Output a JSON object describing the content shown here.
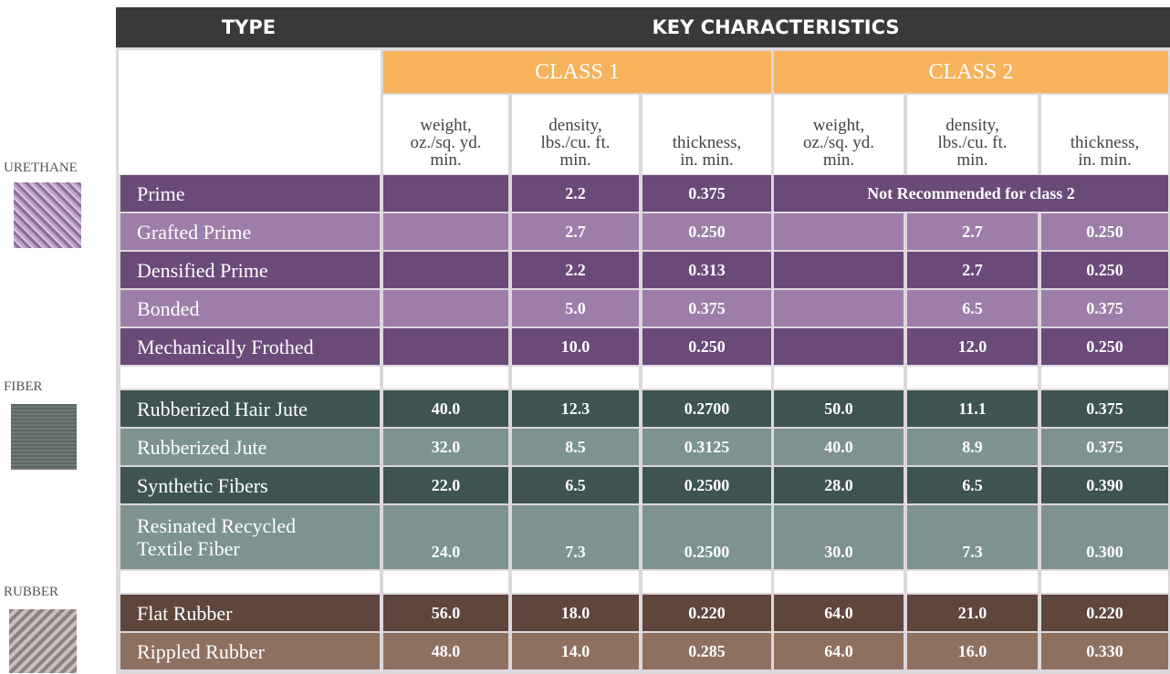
{
  "header": {
    "type": "TYPE",
    "key": "KEY CHARACTERISTICS"
  },
  "classes": [
    "CLASS 1",
    "CLASS 2"
  ],
  "columns": [
    "weight,\noz./sq. yd.\nmin.",
    "density,\nlbs./cu. ft.\nmin.",
    "thickness,\nin. min.",
    "weight,\noz./sq. yd.\nmin.",
    "density,\nlbs./cu. ft.\nmin.",
    "thickness,\nin. min."
  ],
  "groups": [
    {
      "label": "URETHANE",
      "rows": [
        {
          "name": "Prime",
          "values": [
            null,
            "2.2",
            "0.375"
          ],
          "note": "Not Recommended for class 2"
        },
        {
          "name": "Grafted Prime",
          "values": [
            null,
            "2.7",
            "0.250",
            null,
            "2.7",
            "0.250"
          ]
        },
        {
          "name": "Densified Prime",
          "values": [
            null,
            "2.2",
            "0.313",
            null,
            "2.7",
            "0.250"
          ]
        },
        {
          "name": "Bonded",
          "values": [
            null,
            "5.0",
            "0.375",
            null,
            "6.5",
            "0.375"
          ]
        },
        {
          "name": "Mechanically Frothed",
          "values": [
            null,
            "10.0",
            "0.250",
            null,
            "12.0",
            "0.250"
          ]
        }
      ]
    },
    {
      "label": "FIBER",
      "rows": [
        {
          "name": "Rubberized Hair Jute",
          "values": [
            "40.0",
            "12.3",
            "0.2700",
            "50.0",
            "11.1",
            "0.375"
          ]
        },
        {
          "name": "Rubberized Jute",
          "values": [
            "32.0",
            "8.5",
            "0.3125",
            "40.0",
            "8.9",
            "0.375"
          ]
        },
        {
          "name": "Synthetic Fibers",
          "values": [
            "22.0",
            "6.5",
            "0.2500",
            "28.0",
            "6.5",
            "0.390"
          ]
        },
        {
          "name": "Resinated Recycled\nTextile Fiber",
          "values": [
            "24.0",
            "7.3",
            "0.2500",
            "30.0",
            "7.3",
            "0.300"
          ]
        }
      ]
    },
    {
      "label": "RUBBER",
      "rows": [
        {
          "name": "Flat Rubber",
          "values": [
            "56.0",
            "18.0",
            "0.220",
            "64.0",
            "21.0",
            "0.220"
          ]
        },
        {
          "name": "Rippled Rubber",
          "values": [
            "48.0",
            "14.0",
            "0.285",
            "64.0",
            "16.0",
            "0.330"
          ]
        }
      ]
    }
  ]
}
